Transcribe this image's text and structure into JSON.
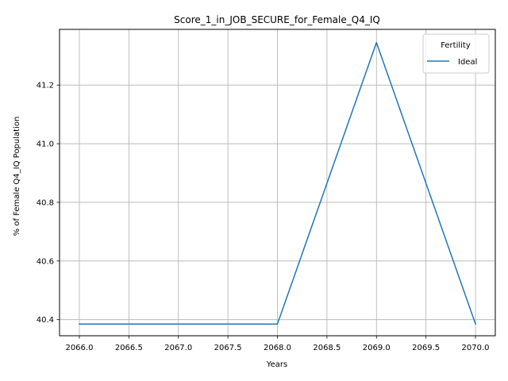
{
  "chart_data": {
    "type": "line",
    "title": "Score_1_in_JOB_SECURE_for_Female_Q4_IQ",
    "xlabel": "Years",
    "ylabel": "% of Female Q4_IQ Population",
    "xlim": [
      2065.8,
      2070.2
    ],
    "ylim": [
      40.345,
      41.39
    ],
    "xticks": [
      2066.0,
      2066.5,
      2067.0,
      2067.5,
      2068.0,
      2068.5,
      2069.0,
      2069.5,
      2070.0
    ],
    "xtick_labels": [
      "2066.0",
      "2066.5",
      "2067.0",
      "2067.5",
      "2068.0",
      "2068.5",
      "2069.0",
      "2069.5",
      "2070.0"
    ],
    "yticks": [
      40.4,
      40.6,
      40.8,
      41.0,
      41.2
    ],
    "ytick_labels": [
      "40.4",
      "40.6",
      "40.8",
      "41.0",
      "41.2"
    ],
    "grid": true,
    "legend": {
      "title": "Fertility",
      "position": "top-right"
    },
    "series": [
      {
        "name": "Ideal",
        "color": "#1f77b4",
        "x": [
          2066,
          2067,
          2068,
          2069,
          2070
        ],
        "y": [
          40.385,
          40.385,
          40.385,
          41.345,
          40.385
        ]
      }
    ]
  }
}
